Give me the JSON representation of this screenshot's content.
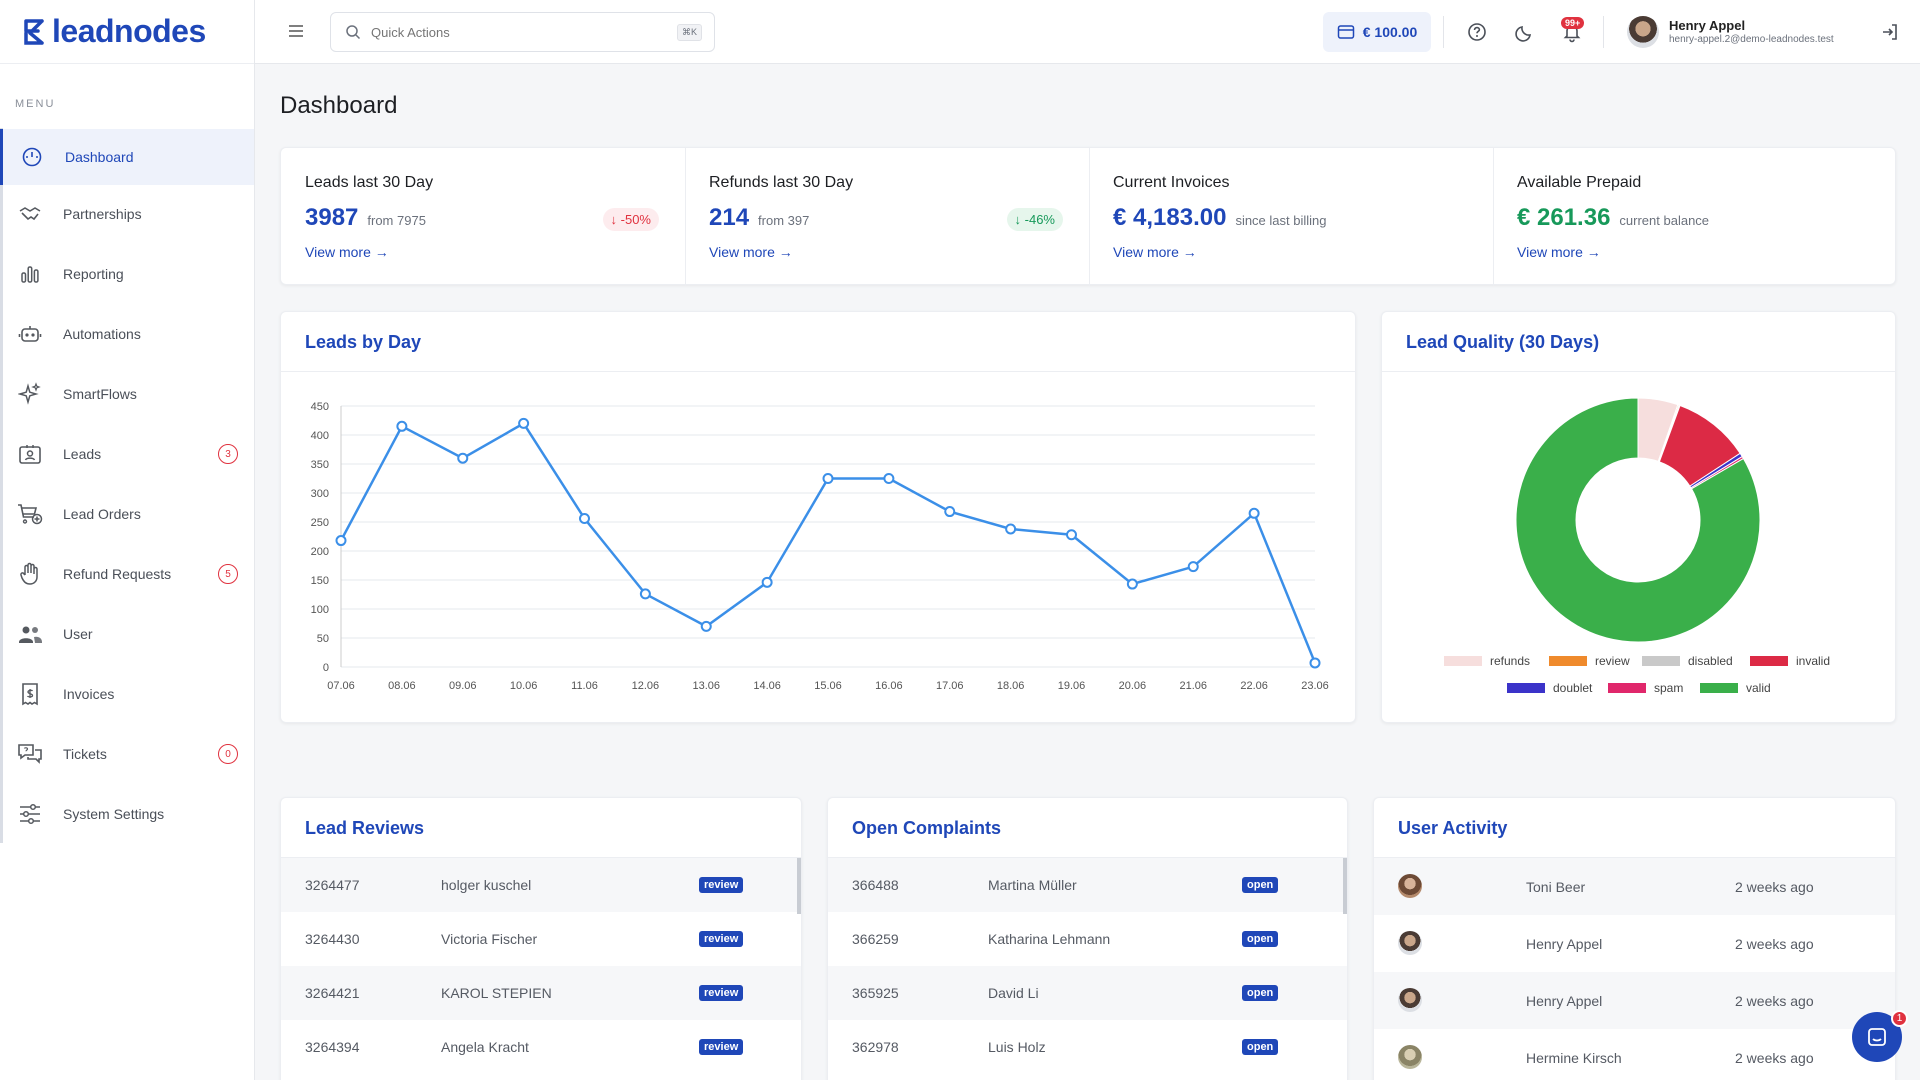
{
  "app": {
    "logo_text": "leadnodes"
  },
  "sidebar": {
    "menu_title": "MENU",
    "items": [
      {
        "label": "Dashboard",
        "icon": "dashboard-gauge-icon",
        "active": true,
        "badge": ""
      },
      {
        "label": "Partnerships",
        "icon": "handshake-icon",
        "badge": ""
      },
      {
        "label": "Reporting",
        "icon": "bar-chart-icon",
        "badge": ""
      },
      {
        "label": "Automations",
        "icon": "robot-icon",
        "badge": ""
      },
      {
        "label": "SmartFlows",
        "icon": "sparkles-icon",
        "badge": ""
      },
      {
        "label": "Leads",
        "icon": "id-card-icon",
        "badge": "3"
      },
      {
        "label": "Lead Orders",
        "icon": "cart-plus-icon",
        "badge": ""
      },
      {
        "label": "Refund Requests",
        "icon": "hand-icon",
        "badge": "5"
      },
      {
        "label": "User",
        "icon": "users-icon",
        "badge": ""
      },
      {
        "label": "Invoices",
        "icon": "invoice-icon",
        "badge": ""
      },
      {
        "label": "Tickets",
        "icon": "chat-bubbles-icon",
        "badge": "0"
      },
      {
        "label": "System Settings",
        "icon": "sliders-icon",
        "badge": ""
      }
    ]
  },
  "topbar": {
    "search_placeholder": "Quick Actions",
    "search_shortcut": "⌘K",
    "balance": "€ 100.00",
    "notifications_badge": "99+",
    "user_name": "Henry Appel",
    "user_email": "henry-appel.2@demo-leadnodes.test"
  },
  "page_title": "Dashboard",
  "stats": [
    {
      "title": "Leads last 30 Day",
      "value": "3987",
      "sub": "from 7975",
      "change": "-50%",
      "change_color": "red",
      "link": "View more →"
    },
    {
      "title": "Refunds last 30 Day",
      "value": "214",
      "sub": "from 397",
      "change": "-46%",
      "change_color": "green",
      "link": "View more →"
    },
    {
      "title": "Current Invoices",
      "value": "€ 4,183.00",
      "sub": "since last billing",
      "link": "View more →"
    },
    {
      "title": "Available Prepaid",
      "value": "€ 261.36",
      "sub": "current balance",
      "link": "View more →"
    }
  ],
  "leads_by_day": {
    "title": "Leads by Day",
    "chart_data": {
      "type": "line",
      "x": [
        "07.06",
        "08.06",
        "09.06",
        "10.06",
        "11.06",
        "12.06",
        "13.06",
        "14.06",
        "15.06",
        "16.06",
        "17.06",
        "18.06",
        "19.06",
        "20.06",
        "21.06",
        "22.06",
        "23.06"
      ],
      "values": [
        218,
        415,
        360,
        420,
        256,
        126,
        70,
        146,
        325,
        325,
        268,
        238,
        228,
        143,
        173,
        265,
        7
      ],
      "ylim": [
        0,
        450
      ],
      "yticks": [
        0,
        50,
        100,
        150,
        200,
        250,
        300,
        350,
        400,
        450
      ],
      "color": "#3b8fe8",
      "grid": true
    }
  },
  "lead_quality": {
    "title": "Lead Quality (30 Days)",
    "chart_data": {
      "type": "pie",
      "labels": [
        "refunds",
        "review",
        "disabled",
        "invalid",
        "doublet",
        "spam",
        "valid"
      ],
      "values": [
        5.3,
        0.15,
        0.15,
        10.2,
        0.5,
        0.3,
        83.4
      ],
      "colors": [
        "#f6dedd",
        "#ef8a2c",
        "#c9c9c9",
        "#dc2a45",
        "#3b33c9",
        "#e0276b",
        "#3aaf4a"
      ],
      "donut": true,
      "legend_position": "bottom"
    }
  },
  "lead_reviews": {
    "title": "Lead Reviews",
    "rows": [
      {
        "id": "3264477",
        "name": "holger kuschel",
        "status": "review"
      },
      {
        "id": "3264430",
        "name": "Victoria Fischer",
        "status": "review"
      },
      {
        "id": "3264421",
        "name": "KAROL STEPIEN",
        "status": "review"
      },
      {
        "id": "3264394",
        "name": "Angela Kracht",
        "status": "review"
      }
    ]
  },
  "open_complaints": {
    "title": "Open Complaints",
    "rows": [
      {
        "id": "366488",
        "name": "Martina Müller",
        "status": "open"
      },
      {
        "id": "366259",
        "name": "Katharina Lehmann",
        "status": "open"
      },
      {
        "id": "365925",
        "name": "David Li",
        "status": "open"
      },
      {
        "id": "362978",
        "name": "Luis Holz",
        "status": "open"
      }
    ]
  },
  "user_activity": {
    "title": "User Activity",
    "rows": [
      {
        "name": "Toni Beer",
        "time": "2 weeks ago"
      },
      {
        "name": "Henry Appel",
        "time": "2 weeks ago"
      },
      {
        "name": "Henry Appel",
        "time": "2 weeks ago"
      },
      {
        "name": "Hermine Kirsch",
        "time": "2 weeks ago"
      }
    ]
  },
  "chat_badge": "1"
}
